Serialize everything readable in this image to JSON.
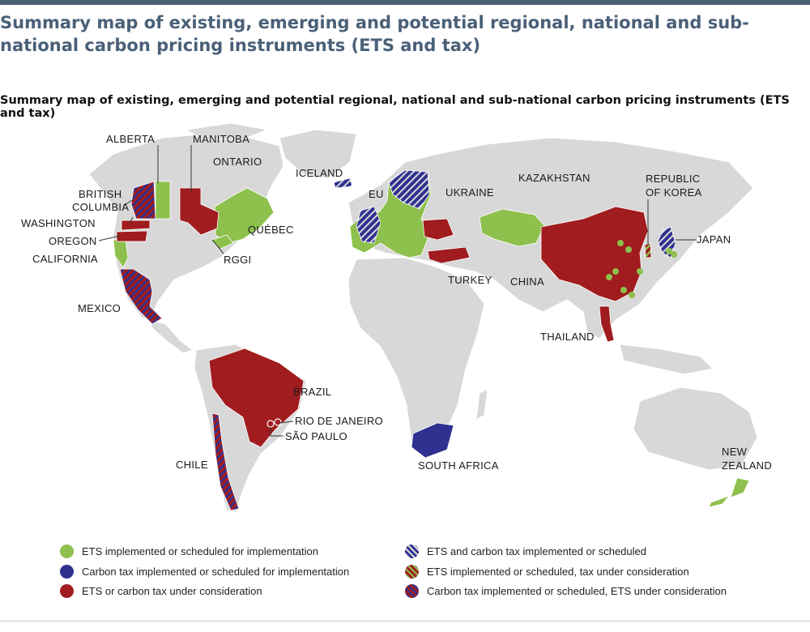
{
  "title": "Summary map of existing, emerging and potential regional, national and sub-national carbon pricing instruments (ETS and tax)",
  "subtitle": "Summary map of existing, emerging and potential regional, national and sub-national carbon pricing instruments (ETS and tax)",
  "colors": {
    "ets": "#8dc04c",
    "carbon_tax": "#2e3190",
    "under_consideration": "#a01c1e",
    "land": "#d8d8d8",
    "header_bar": "#4a5f74"
  },
  "map_labels": {
    "alberta": "ALBERTA",
    "manitoba": "MANITOBA",
    "ontario": "ONTARIO",
    "british_columbia_1": "BRITISH",
    "british_columbia_2": "COLUMBIA",
    "washington": "WASHINGTON",
    "oregon": "OREGON",
    "california": "CALIFORNIA",
    "quebec": "QUÉBEC",
    "rggi": "RGGI",
    "mexico": "MEXICO",
    "iceland": "ICELAND",
    "eu": "EU",
    "ukraine": "UKRAINE",
    "turkey": "TURKEY",
    "kazakhstan": "KAZAKHSTAN",
    "korea_1": "REPUBLIC",
    "korea_2": "OF KOREA",
    "japan": "JAPAN",
    "china": "CHINA",
    "thailand": "THAILAND",
    "brazil": "BRAZIL",
    "rio": "RIO DE JANEIRO",
    "sao_paulo": "SÃO PAULO",
    "chile": "CHILE",
    "south_africa": "SOUTH AFRICA",
    "new_zealand_1": "NEW",
    "new_zealand_2": "ZEALAND"
  },
  "legend": [
    {
      "label": "ETS implemented or scheduled for implementation",
      "pattern": "ets"
    },
    {
      "label": "Carbon tax implemented or scheduled for implementation",
      "pattern": "tax"
    },
    {
      "label": "ETS or carbon tax under consideration",
      "pattern": "consider"
    },
    {
      "label": "ETS and carbon tax implemented or scheduled",
      "pattern": "ets-tax"
    },
    {
      "label": "ETS implemented or scheduled, tax under consideration",
      "pattern": "ets-consider"
    },
    {
      "label": "Carbon tax implemented or scheduled, ETS under consideration",
      "pattern": "tax-consider"
    }
  ]
}
